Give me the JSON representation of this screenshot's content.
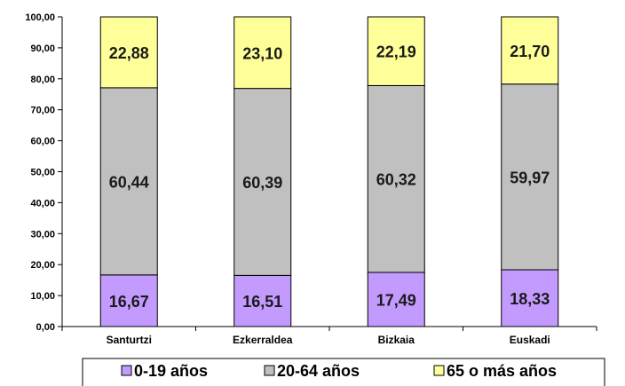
{
  "chart_data": {
    "type": "bar",
    "stacked": true,
    "categories": [
      "Santurtzi",
      "Ezkerraldea",
      "Bizkaia",
      "Euskadi"
    ],
    "series": [
      {
        "name": "0-19 años",
        "color": "#c39bff",
        "values": [
          16.67,
          16.51,
          17.49,
          18.33
        ],
        "labels": [
          "16,67",
          "16,51",
          "17,49",
          "18,33"
        ]
      },
      {
        "name": "20-64 años",
        "color": "#c0c0c0",
        "values": [
          60.44,
          60.39,
          60.32,
          59.97
        ],
        "labels": [
          "60,44",
          "60,39",
          "60,32",
          "59,97"
        ]
      },
      {
        "name": "65 o más años",
        "color": "#ffff99",
        "values": [
          22.88,
          23.1,
          22.19,
          21.7
        ],
        "labels": [
          "22,88",
          "23,10",
          "22,19",
          "21,70"
        ]
      }
    ],
    "ylim": [
      0,
      100
    ],
    "yticks": [
      "0,00",
      "10,00",
      "20,00",
      "30,00",
      "40,00",
      "50,00",
      "60,00",
      "70,00",
      "80,00",
      "90,00",
      "100,00"
    ],
    "grid": false,
    "legend_position": "bottom",
    "title": "",
    "xlabel": "",
    "ylabel": ""
  }
}
